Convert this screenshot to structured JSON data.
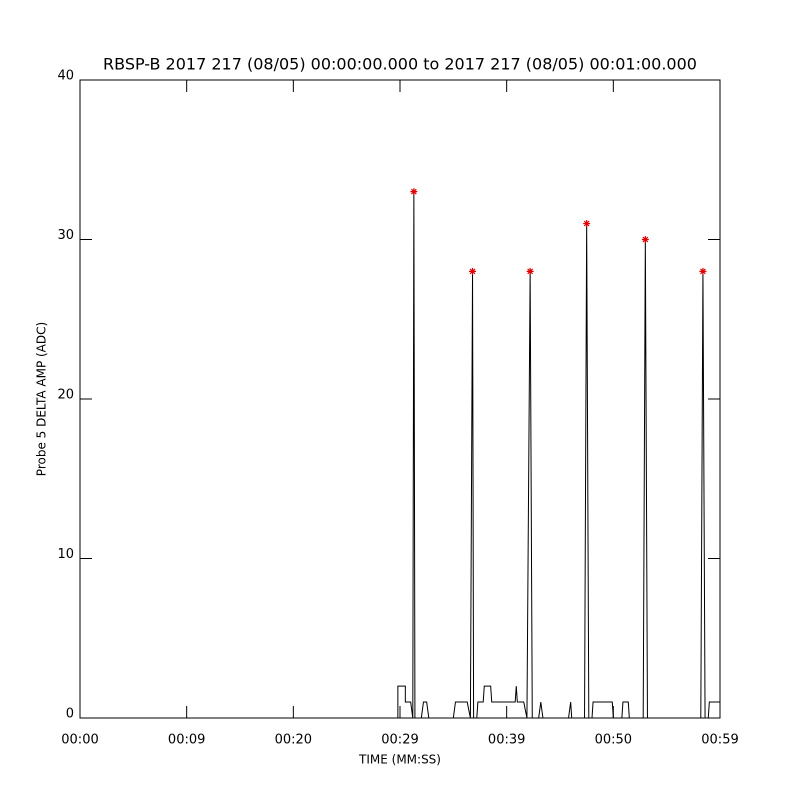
{
  "chart_data": {
    "type": "line",
    "title": "RBSP-B 2017 217 (08/05) 00:00:00.000 to 2017 217 (08/05) 00:01:00.000",
    "x_label": "TIME (MM:SS)",
    "y_label": "Probe 5 DELTA AMP (ADC)",
    "xlim": [
      0,
      60
    ],
    "ylim": [
      0,
      40
    ],
    "xticks": [
      {
        "value": 0,
        "label": "00:00"
      },
      {
        "value": 10,
        "label": "00:09"
      },
      {
        "value": 20,
        "label": "00:20"
      },
      {
        "value": 30,
        "label": "00:29"
      },
      {
        "value": 40,
        "label": "00:39"
      },
      {
        "value": 50,
        "label": "00:50"
      },
      {
        "value": 60,
        "label": "00:59"
      }
    ],
    "yticks": [
      0,
      10,
      20,
      30,
      40
    ],
    "line": {
      "color": "#000000",
      "x": [
        0,
        29.8,
        29.8,
        30.5,
        30.5,
        31.0,
        31.2,
        31.3,
        31.4,
        32.0,
        32.2,
        32.5,
        32.7,
        35.0,
        35.2,
        36.3,
        36.6,
        36.8,
        36.9,
        37.2,
        37.3,
        37.8,
        37.9,
        38.5,
        38.6,
        40.8,
        40.9,
        41.0,
        41.6,
        41.9,
        42.2,
        42.4,
        43.0,
        43.2,
        43.4,
        45.8,
        46.0,
        46.1,
        47.3,
        47.5,
        47.7,
        48.0,
        48.1,
        49.9,
        50.0,
        50.8,
        50.9,
        51.4,
        51.5,
        52.8,
        53.0,
        53.2,
        58.2,
        58.4,
        58.6,
        58.9,
        59.0,
        60
      ],
      "values": [
        0,
        0,
        2,
        2,
        1,
        1,
        0,
        33,
        0,
        0,
        1,
        1,
        0,
        0,
        1,
        1,
        0,
        28,
        0,
        0,
        1,
        1,
        2,
        2,
        1,
        1,
        2,
        1,
        1,
        0,
        28,
        0,
        0,
        1,
        0,
        0,
        1,
        0,
        0,
        31,
        0,
        0,
        1,
        1,
        0,
        0,
        1,
        1,
        0,
        0,
        30,
        0,
        0,
        28,
        0,
        0,
        1,
        1
      ]
    },
    "peaks": {
      "color": "#e00000",
      "x": [
        31.3,
        36.8,
        42.2,
        47.5,
        53.0,
        58.4
      ],
      "values": [
        33,
        28,
        28,
        31,
        30,
        28
      ]
    }
  }
}
